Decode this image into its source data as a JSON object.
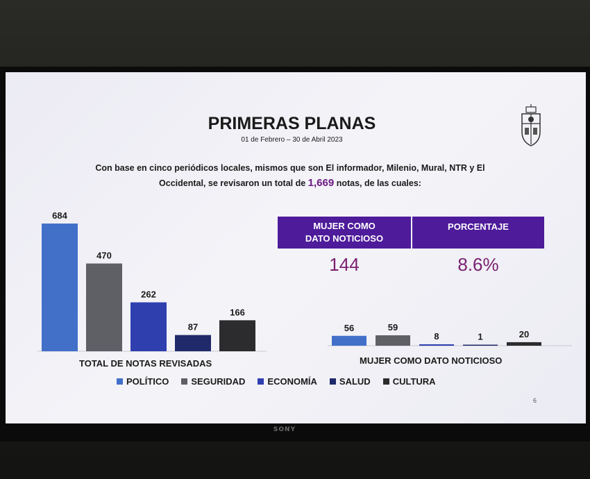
{
  "slide": {
    "title": "PRIMERAS PLANAS",
    "date_range": "01 de Febrero – 30 de Abril 2023",
    "intro_part1": "Con base en cinco periódicos locales, mismos que son El informador, Milenio, Mural, NTR y El",
    "intro_part2": "Occidental, se revisaron un total de ",
    "intro_total": "1,669",
    "intro_part3": " notas, de las cuales:",
    "page_number": "6",
    "crest_icon": "university-crest-icon"
  },
  "kpis": {
    "woman_header_line1": "MUJER COMO",
    "woman_header_line2": "DATO NOTICIOSO",
    "woman_value": "144",
    "percent_header": "PORCENTAJE",
    "percent_value": "8.6%",
    "header_color": "#4e1b9a",
    "value_color": "#7a1f6f"
  },
  "monitor_brand": "SONY",
  "legend": [
    {
      "label": "POLÍTICO",
      "color": "#4270c9"
    },
    {
      "label": "SEGURIDAD",
      "color": "#5e6066"
    },
    {
      "label": "ECONOMÍA",
      "color": "#2f3fae"
    },
    {
      "label": "SALUD",
      "color": "#202a6b"
    },
    {
      "label": "CULTURA",
      "color": "#2c2c2e"
    }
  ],
  "chart_data": [
    {
      "type": "bar",
      "title": "TOTAL DE NOTAS REVISADAS",
      "categories": [
        "POLÍTICO",
        "SEGURIDAD",
        "ECONOMÍA",
        "SALUD",
        "CULTURA"
      ],
      "values": [
        684,
        470,
        262,
        87,
        166
      ],
      "colors": [
        "#4270c9",
        "#5e6066",
        "#2f3fae",
        "#202a6b",
        "#2c2c2e"
      ],
      "data_labels": true,
      "grid": false,
      "legend": "bottom"
    },
    {
      "type": "bar",
      "title": "MUJER COMO DATO NOTICIOSO",
      "categories": [
        "POLÍTICO",
        "SEGURIDAD",
        "ECONOMÍA",
        "SALUD",
        "CULTURA"
      ],
      "values": [
        56,
        59,
        8,
        1,
        20
      ],
      "colors": [
        "#4270c9",
        "#5e6066",
        "#2f3fae",
        "#202a6b",
        "#2c2c2e"
      ],
      "data_labels": true,
      "grid": false,
      "legend": "bottom"
    }
  ]
}
